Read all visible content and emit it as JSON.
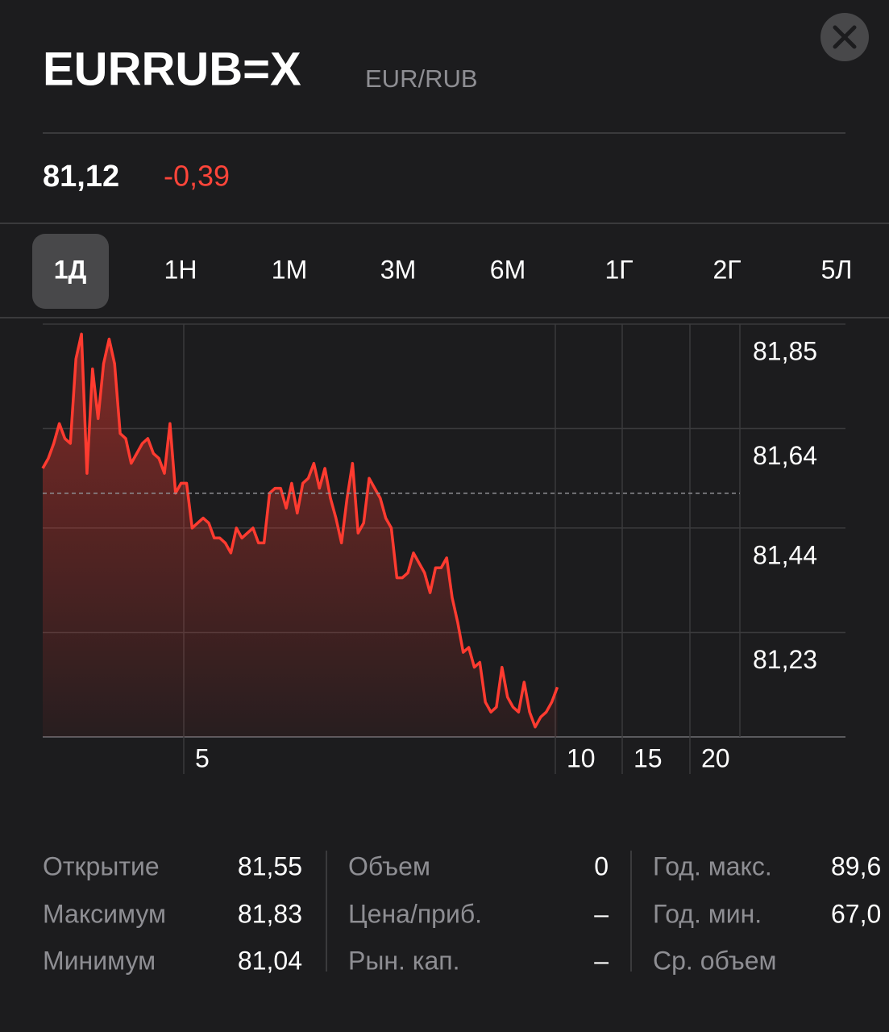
{
  "header": {
    "title": "EURRUB=X",
    "subtitle": "EUR/RUB"
  },
  "quote": {
    "price": "81,12",
    "change": "-0,39"
  },
  "ranges": {
    "items": [
      "1Д",
      "1Н",
      "1М",
      "3М",
      "6М",
      "1Г",
      "2Г",
      "5Л"
    ],
    "selected": 0
  },
  "chart_data": {
    "type": "line",
    "series": [
      {
        "color": "#ff3b30",
        "values": [
          81.56,
          81.58,
          81.61,
          81.65,
          81.62,
          81.61,
          81.78,
          81.83,
          81.55,
          81.76,
          81.66,
          81.77,
          81.82,
          81.77,
          81.63,
          81.62,
          81.57,
          81.59,
          81.61,
          81.62,
          81.59,
          81.58,
          81.55,
          81.65,
          81.51,
          81.53,
          81.53,
          81.44,
          81.45,
          81.46,
          81.45,
          81.42,
          81.42,
          81.41,
          81.39,
          81.44,
          81.42,
          81.43,
          81.44,
          81.41,
          81.41,
          81.51,
          81.52,
          81.52,
          81.48,
          81.53,
          81.47,
          81.53,
          81.54,
          81.57,
          81.52,
          81.56,
          81.5,
          81.46,
          81.41,
          81.5,
          81.57,
          81.43,
          81.45,
          81.54,
          81.52,
          81.5,
          81.46,
          81.44,
          81.34,
          81.34,
          81.35,
          81.39,
          81.37,
          81.35,
          81.31,
          81.36,
          81.36,
          81.38,
          81.3,
          81.25,
          81.19,
          81.2,
          81.16,
          81.17,
          81.09,
          81.07,
          81.08,
          81.16,
          81.1,
          81.08,
          81.07,
          81.13,
          81.07,
          81.04,
          81.06,
          81.07,
          81.09,
          81.12
        ]
      }
    ],
    "ylim": [
      81.02,
      81.85
    ],
    "yticks": [
      {
        "value": 81.85,
        "label": "81,85"
      },
      {
        "value": 81.64,
        "label": "81,64"
      },
      {
        "value": 81.44,
        "label": "81,44"
      },
      {
        "value": 81.23,
        "label": "81,23"
      }
    ],
    "xticks": [
      5,
      10,
      15,
      20
    ],
    "prev_close": 81.51,
    "grid": true
  },
  "stats": [
    {
      "rows": [
        {
          "label": "Открытие",
          "value": "81,55"
        },
        {
          "label": "Максимум",
          "value": "81,83"
        },
        {
          "label": "Минимум",
          "value": "81,04"
        }
      ]
    },
    {
      "rows": [
        {
          "label": "Объем",
          "value": "0"
        },
        {
          "label": "Цена/приб.",
          "value": "–"
        },
        {
          "label": "Рын. кап.",
          "value": "–"
        }
      ]
    },
    {
      "rows": [
        {
          "label": "Год. макс.",
          "value": "89,6"
        },
        {
          "label": "Год. мин.",
          "value": "67,0"
        },
        {
          "label": "Ср. объем"
        }
      ]
    }
  ]
}
